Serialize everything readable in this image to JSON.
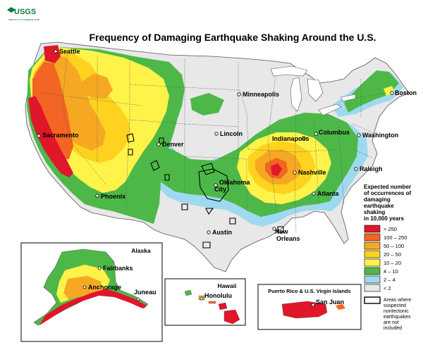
{
  "logo": {
    "text": "USGS",
    "tagline": "science for a changing world"
  },
  "title": "Frequency of Damaging Earthquake Shaking Around the U.S.",
  "cities": [
    "Seattle",
    "Sacramento",
    "Phoenix",
    "Denver",
    "Lincoln",
    "Minneapolis",
    "Oklahoma",
    "City",
    "Austin",
    "New",
    "Orleans",
    "Indianapolis",
    "Columbus",
    "Nashville",
    "Atlanta",
    "Washington",
    "Raleigh",
    "Boston"
  ],
  "insets": {
    "alaska": {
      "title": "Alaska",
      "cities": [
        "Fairbanks",
        "Anchorage",
        "Juneau"
      ]
    },
    "hawaii": {
      "title": "Hawaii",
      "cities": [
        "Honolulu"
      ]
    },
    "puerto_rico": {
      "title": "Puerto Rico & U.S. Virgin Islands",
      "cities": [
        "San Juan"
      ]
    }
  },
  "legend": {
    "title_lines": [
      "Expected number",
      "of occurrences of",
      "damaging",
      "earthquake",
      "shaking",
      "in 10,000 years"
    ],
    "classes": [
      {
        "label": "> 250",
        "color": "#e0162b"
      },
      {
        "label": "100 – 250",
        "color": "#f26522"
      },
      {
        "label": "50 – 100",
        "color": "#f7a823"
      },
      {
        "label": "20 – 50",
        "color": "#ffd21f"
      },
      {
        "label": "10 – 20",
        "color": "#fff34a"
      },
      {
        "label": "4 – 10",
        "color": "#4db848"
      },
      {
        "label": "2 – 4",
        "color": "#9fd9ef"
      },
      {
        "label": "< 2",
        "color": "#e8e8e8"
      }
    ],
    "note_lines": [
      "Areas where",
      "suspected",
      "nontectonic",
      "earthquakes",
      "are not",
      "included"
    ]
  }
}
